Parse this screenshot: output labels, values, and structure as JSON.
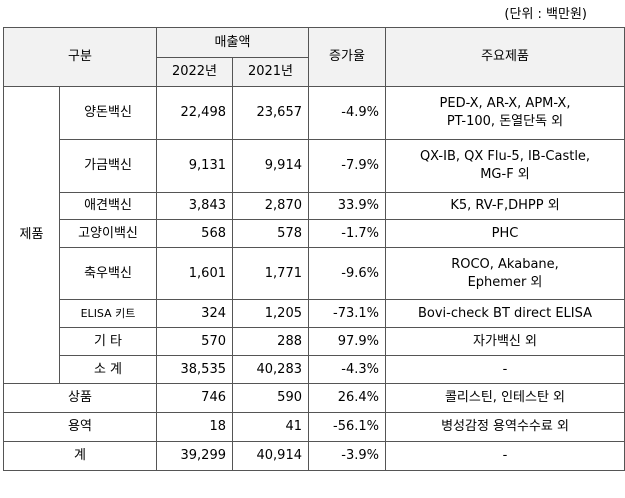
{
  "unit_note": "(단위 : 백만원)",
  "header": {
    "category": "구분",
    "sales": "매출액",
    "year_2022": "2022년",
    "year_2021": "2021년",
    "change": "증가율",
    "main_products": "주요제품"
  },
  "product_group_label": "제품",
  "product_rows": [
    {
      "name": "양돈백신",
      "v2022": "22,498",
      "v2021": "23,657",
      "change": "-4.9%",
      "items": [
        "PED-X, AR-X, APM-X,",
        "PT-100, 돈열단독 외"
      ]
    },
    {
      "name": "가금백신",
      "v2022": "9,131",
      "v2021": "9,914",
      "change": "-7.9%",
      "items": [
        "QX-IB, QX Flu-5, IB-Castle,",
        "MG-F 외"
      ]
    },
    {
      "name": "애견백신",
      "v2022": "3,843",
      "v2021": "2,870",
      "change": "33.9%",
      "items": [
        "K5, RV-F,DHPP 외"
      ]
    },
    {
      "name": "고양이백신",
      "v2022": "568",
      "v2021": "578",
      "change": "-1.7%",
      "items": [
        "PHC"
      ]
    },
    {
      "name": "축우백신",
      "v2022": "1,601",
      "v2021": "1,771",
      "change": "-9.6%",
      "items": [
        "ROCO, Akabane,",
        "Ephemer 외"
      ]
    },
    {
      "name": "ELISA 키트",
      "v2022": "324",
      "v2021": "1,205",
      "change": "-73.1%",
      "items": [
        "Bovi-check BT direct ELISA"
      ]
    },
    {
      "name": "기 타",
      "v2022": "570",
      "v2021": "288",
      "change": "97.9%",
      "items": [
        "자가백신 외"
      ]
    },
    {
      "name": "소 계",
      "v2022": "38,535",
      "v2021": "40,283",
      "change": "-4.3%",
      "items": [
        "-"
      ]
    }
  ],
  "other_rows": [
    {
      "name": "상품",
      "v2022": "746",
      "v2021": "590",
      "change": "26.4%",
      "items": [
        "콜리스틴, 인테스탄 외"
      ]
    },
    {
      "name": "용역",
      "v2022": "18",
      "v2021": "41",
      "change": "-56.1%",
      "items": [
        "병성감정 용역수수료 외"
      ]
    },
    {
      "name": "계",
      "v2022": "39,299",
      "v2021": "40,914",
      "change": "-3.9%",
      "items": [
        "-"
      ]
    }
  ]
}
